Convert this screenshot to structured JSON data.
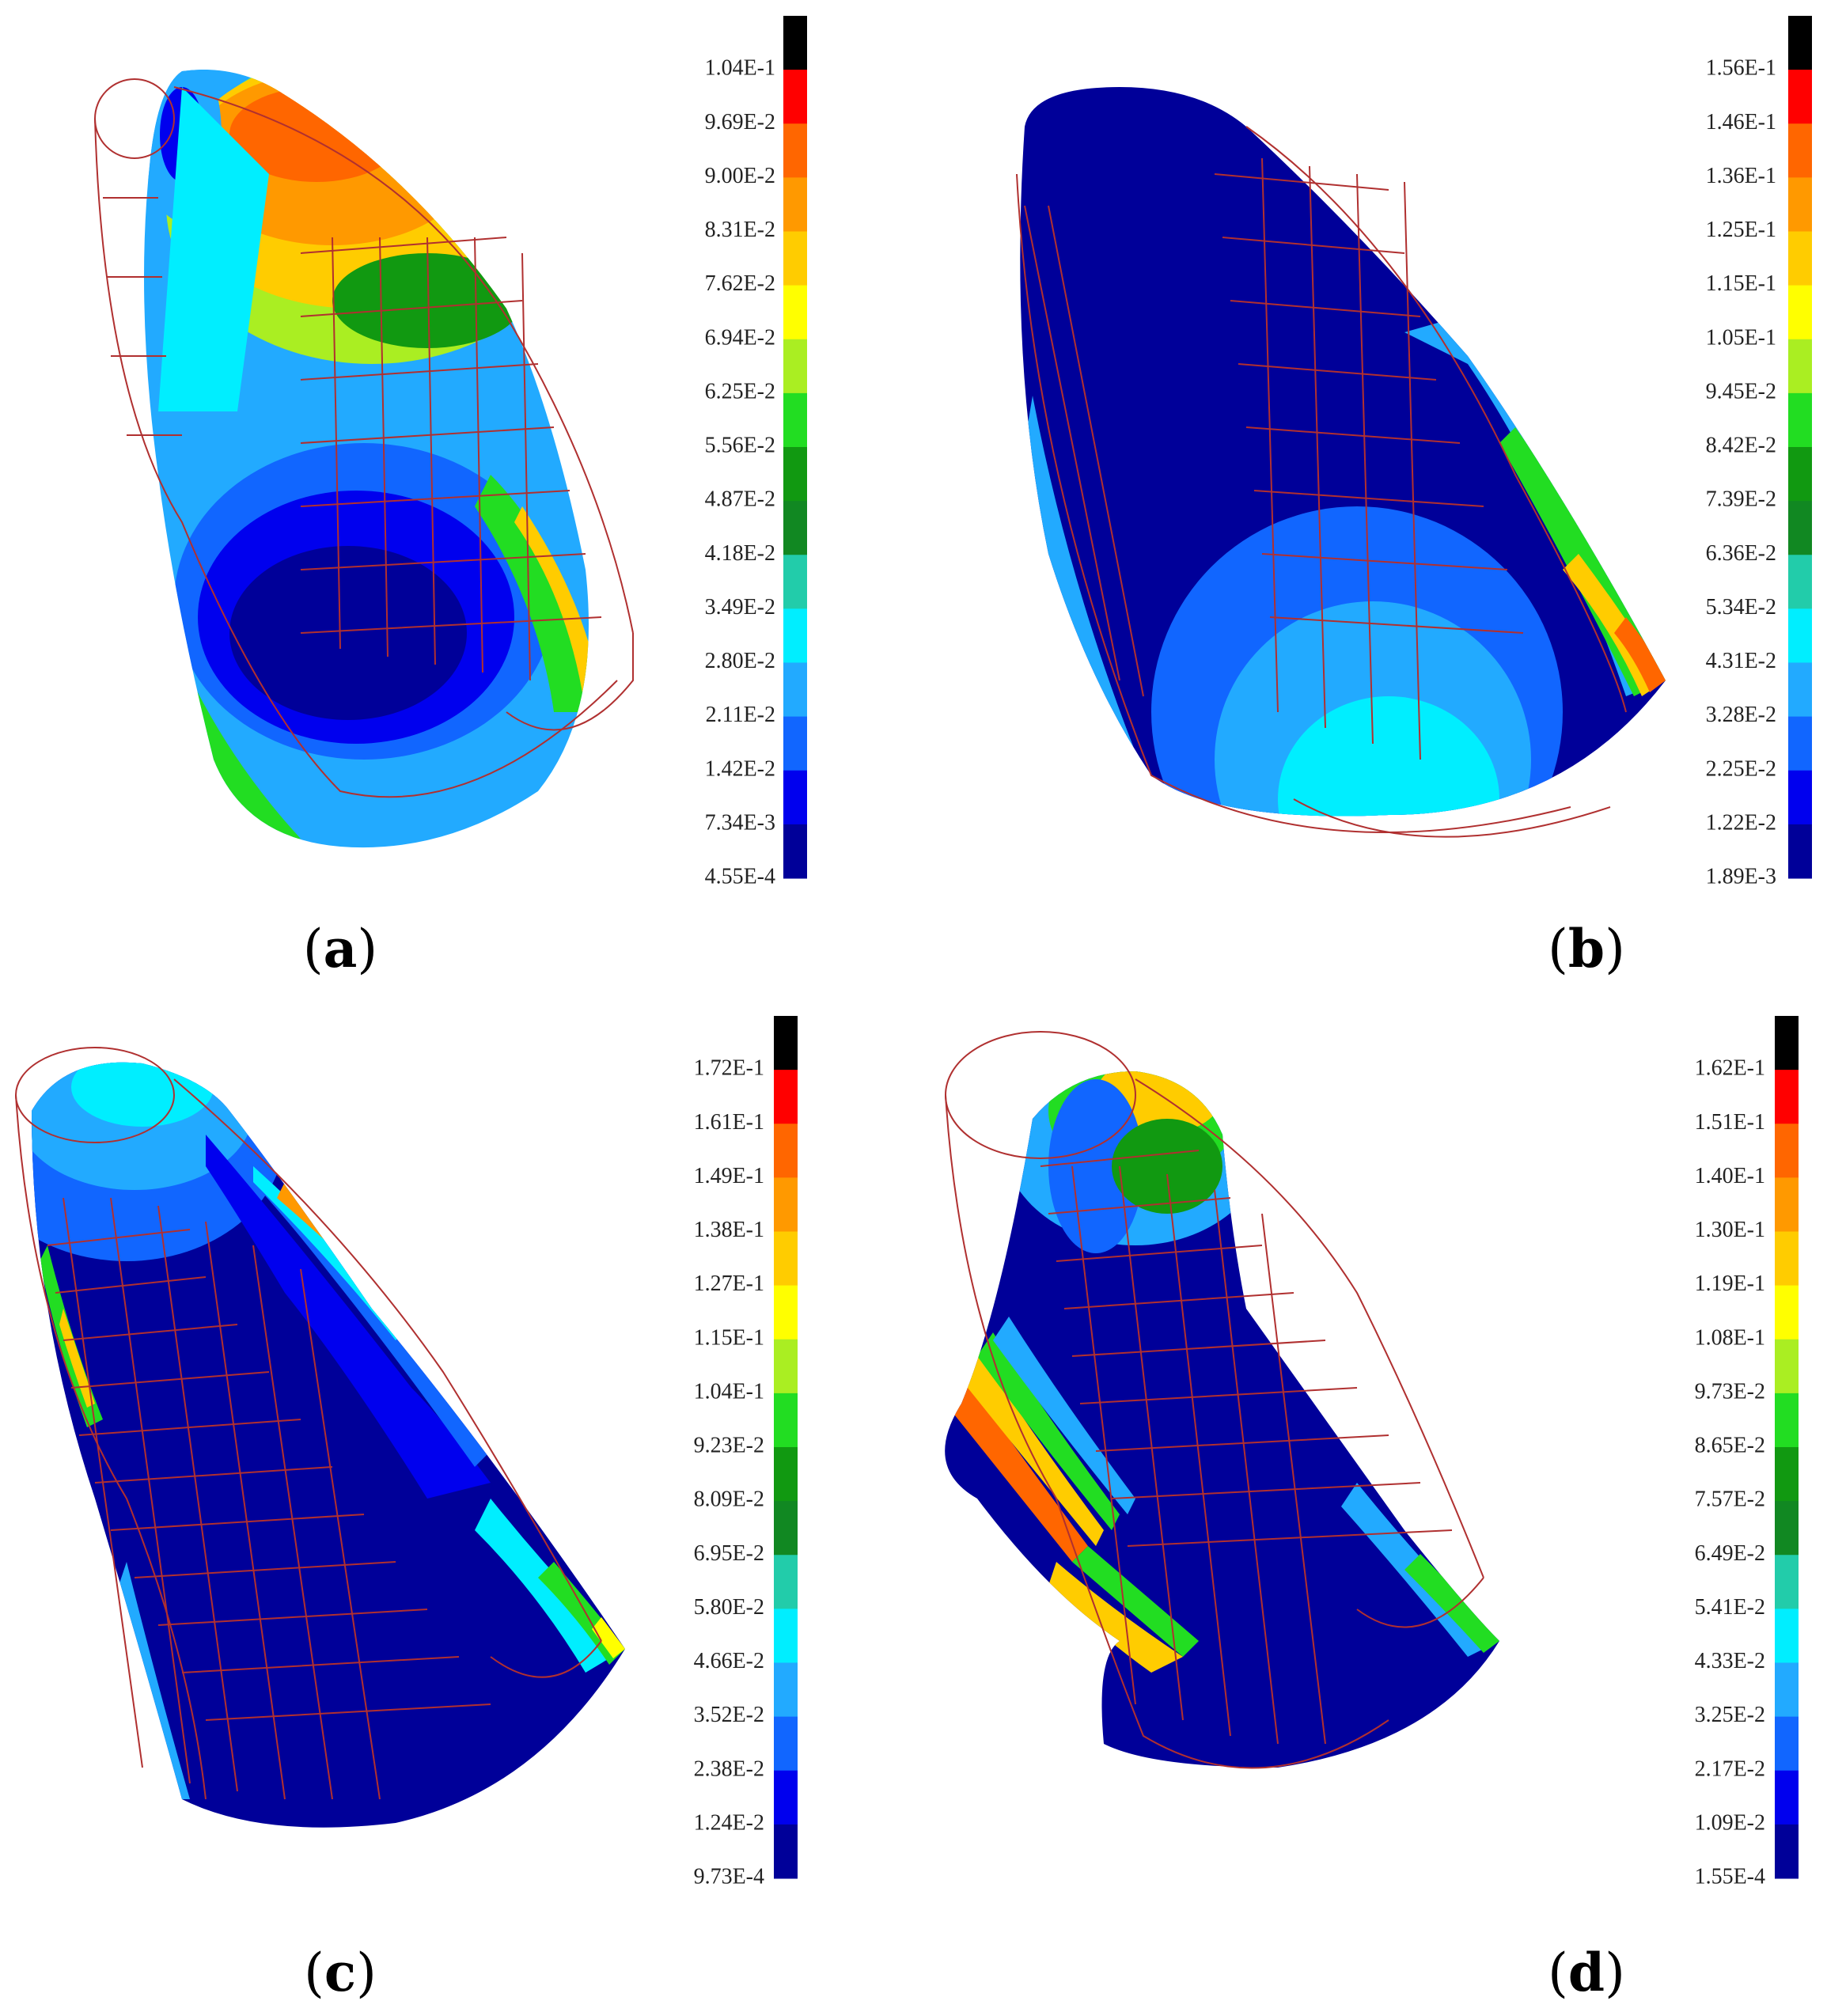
{
  "panels": [
    {
      "caption_letter": "a",
      "legend": {
        "ticks": [
          "1.04E-1",
          "9.69E-2",
          "9.00E-2",
          "8.31E-2",
          "7.62E-2",
          "6.94E-2",
          "6.25E-2",
          "5.56E-2",
          "4.87E-2",
          "4.18E-2",
          "3.49E-2",
          "2.80E-2",
          "2.11E-2",
          "1.42E-2",
          "7.34E-3",
          "4.55E-4"
        ]
      }
    },
    {
      "caption_letter": "b",
      "legend": {
        "ticks": [
          "1.56E-1",
          "1.46E-1",
          "1.36E-1",
          "1.25E-1",
          "1.15E-1",
          "1.05E-1",
          "9.45E-2",
          "8.42E-2",
          "7.39E-2",
          "6.36E-2",
          "5.34E-2",
          "4.31E-2",
          "3.28E-2",
          "2.25E-2",
          "1.22E-2",
          "1.89E-3"
        ]
      }
    },
    {
      "caption_letter": "c",
      "legend": {
        "ticks": [
          "1.72E-1",
          "1.61E-1",
          "1.49E-1",
          "1.38E-1",
          "1.27E-1",
          "1.15E-1",
          "1.04E-1",
          "9.23E-2",
          "8.09E-2",
          "6.95E-2",
          "5.80E-2",
          "4.66E-2",
          "3.52E-2",
          "2.38E-2",
          "1.24E-2",
          "9.73E-4"
        ]
      }
    },
    {
      "caption_letter": "d",
      "legend": {
        "ticks": [
          "1.62E-1",
          "1.51E-1",
          "1.40E-1",
          "1.30E-1",
          "1.19E-1",
          "1.08E-1",
          "9.73E-2",
          "8.65E-2",
          "7.57E-2",
          "6.49E-2",
          "5.41E-2",
          "4.33E-2",
          "3.25E-2",
          "2.17E-2",
          "1.09E-2",
          "1.55E-4"
        ]
      }
    }
  ],
  "colorbar_colors": [
    "#000000",
    "#ff0000",
    "#ff6600",
    "#ff9900",
    "#ffcc00",
    "#ffff00",
    "#aaee22",
    "#22dd22",
    "#119911",
    "#118822",
    "#22ccaa",
    "#00eeff",
    "#22aaff",
    "#1166ff",
    "#0000ee",
    "#000099"
  ],
  "mesh_color": "#b03030"
}
